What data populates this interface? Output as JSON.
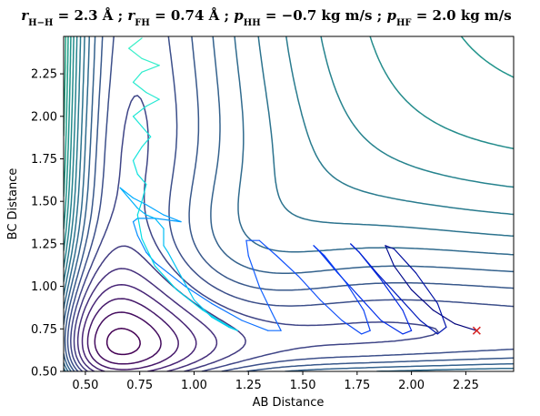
{
  "chart_data": {
    "type": "contour",
    "title": "r_{H−H} = 2.3 Å ; r_{FH} = 0.74 Å ; p_{HH} = −0.7 kg m/s ; p_{HF} = 2.0 kg m/s",
    "title_display": "rₕ₋ₕ = 2.3 Å ; rⁱₕ = 0.74 Å ; pₕₕ = −0.7 kg m/s ; pₕⁱ = 2.0 kg m/s",
    "title_parts": [
      {
        "text": "r",
        "italic": true
      },
      {
        "text": "H−H",
        "sub": true
      },
      {
        "text": " = 2.3 Å ; "
      },
      {
        "text": "r",
        "italic": true
      },
      {
        "text": "FH",
        "sub": true
      },
      {
        "text": " = 0.74 Å ; "
      },
      {
        "text": "p",
        "italic": true
      },
      {
        "text": "HH",
        "sub": true
      },
      {
        "text": " = −0.7 kg m/s ; "
      },
      {
        "text": "p",
        "italic": true
      },
      {
        "text": "HF",
        "sub": true
      },
      {
        "text": " = 2.0 kg m/s"
      }
    ],
    "xlabel": "AB Distance",
    "ylabel": "BC Distance",
    "xlim": [
      0.4,
      2.47
    ],
    "ylim": [
      0.5,
      2.47
    ],
    "xticks": [
      "0.50",
      "0.75",
      "1.00",
      "1.25",
      "1.50",
      "1.75",
      "2.00",
      "2.25"
    ],
    "yticks": [
      "0.50",
      "0.75",
      "1.00",
      "1.25",
      "1.50",
      "1.75",
      "2.00",
      "2.25"
    ],
    "xtick_values": [
      0.5,
      0.75,
      1.0,
      1.25,
      1.5,
      1.75,
      2.0,
      2.25
    ],
    "ytick_values": [
      0.5,
      0.75,
      1.0,
      1.25,
      1.5,
      1.75,
      2.0,
      2.25
    ],
    "grid": false,
    "colormap": "viridis",
    "contour_levels": 30,
    "marker": {
      "x": 2.3,
      "y": 0.74,
      "symbol": "x",
      "color": "#d62728"
    },
    "trajectory": [
      [
        2.3,
        0.74
      ],
      [
        2.2,
        0.78
      ],
      [
        2.1,
        0.86
      ],
      [
        2.0,
        0.98
      ],
      [
        1.92,
        1.12
      ],
      [
        1.88,
        1.24
      ],
      [
        1.92,
        1.22
      ],
      [
        2.02,
        1.08
      ],
      [
        2.12,
        0.9
      ],
      [
        2.16,
        0.76
      ],
      [
        2.12,
        0.72
      ],
      [
        2.04,
        0.8
      ],
      [
        1.94,
        0.94
      ],
      [
        1.84,
        1.08
      ],
      [
        1.76,
        1.2
      ],
      [
        1.72,
        1.25
      ],
      [
        1.76,
        1.2
      ],
      [
        1.86,
        1.04
      ],
      [
        1.96,
        0.86
      ],
      [
        2.0,
        0.74
      ],
      [
        1.96,
        0.72
      ],
      [
        1.86,
        0.8
      ],
      [
        1.76,
        0.94
      ],
      [
        1.66,
        1.08
      ],
      [
        1.58,
        1.2
      ],
      [
        1.55,
        1.24
      ],
      [
        1.6,
        1.18
      ],
      [
        1.7,
        1.02
      ],
      [
        1.78,
        0.86
      ],
      [
        1.81,
        0.74
      ],
      [
        1.77,
        0.72
      ],
      [
        1.68,
        0.8
      ],
      [
        1.58,
        0.92
      ],
      [
        1.48,
        1.06
      ],
      [
        1.38,
        1.18
      ],
      [
        1.3,
        1.27
      ],
      [
        1.24,
        1.27
      ],
      [
        1.25,
        1.18
      ],
      [
        1.3,
        1.0
      ],
      [
        1.36,
        0.84
      ],
      [
        1.4,
        0.74
      ],
      [
        1.34,
        0.74
      ],
      [
        1.22,
        0.8
      ],
      [
        1.08,
        0.9
      ],
      [
        0.96,
        1.0
      ],
      [
        0.88,
        1.08
      ],
      [
        0.82,
        1.14
      ],
      [
        0.78,
        1.2
      ],
      [
        0.74,
        1.3
      ],
      [
        0.72,
        1.38
      ],
      [
        0.74,
        1.4
      ],
      [
        0.82,
        1.4
      ],
      [
        0.94,
        1.38
      ],
      [
        0.86,
        1.42
      ],
      [
        0.78,
        1.48
      ],
      [
        0.72,
        1.52
      ],
      [
        0.66,
        1.58
      ],
      [
        0.7,
        1.52
      ],
      [
        0.74,
        1.46
      ],
      [
        0.78,
        1.42
      ],
      [
        0.82,
        1.4
      ],
      [
        0.86,
        1.34
      ],
      [
        0.86,
        1.24
      ],
      [
        0.88,
        1.2
      ],
      [
        0.94,
        1.06
      ],
      [
        1.0,
        0.92
      ],
      [
        1.08,
        0.82
      ],
      [
        1.16,
        0.76
      ],
      [
        1.2,
        0.74
      ],
      [
        1.14,
        0.78
      ],
      [
        1.04,
        0.86
      ],
      [
        0.92,
        0.98
      ],
      [
        0.82,
        1.12
      ],
      [
        0.76,
        1.28
      ],
      [
        0.74,
        1.42
      ],
      [
        0.76,
        1.5
      ],
      [
        0.78,
        1.6
      ],
      [
        0.74,
        1.66
      ],
      [
        0.72,
        1.74
      ],
      [
        0.76,
        1.82
      ],
      [
        0.8,
        1.88
      ],
      [
        0.76,
        1.94
      ],
      [
        0.72,
        2.0
      ],
      [
        0.78,
        2.06
      ],
      [
        0.84,
        2.1
      ],
      [
        0.78,
        2.14
      ],
      [
        0.72,
        2.2
      ],
      [
        0.76,
        2.26
      ],
      [
        0.84,
        2.3
      ],
      [
        0.76,
        2.34
      ],
      [
        0.7,
        2.4
      ],
      [
        0.76,
        2.46
      ]
    ]
  }
}
